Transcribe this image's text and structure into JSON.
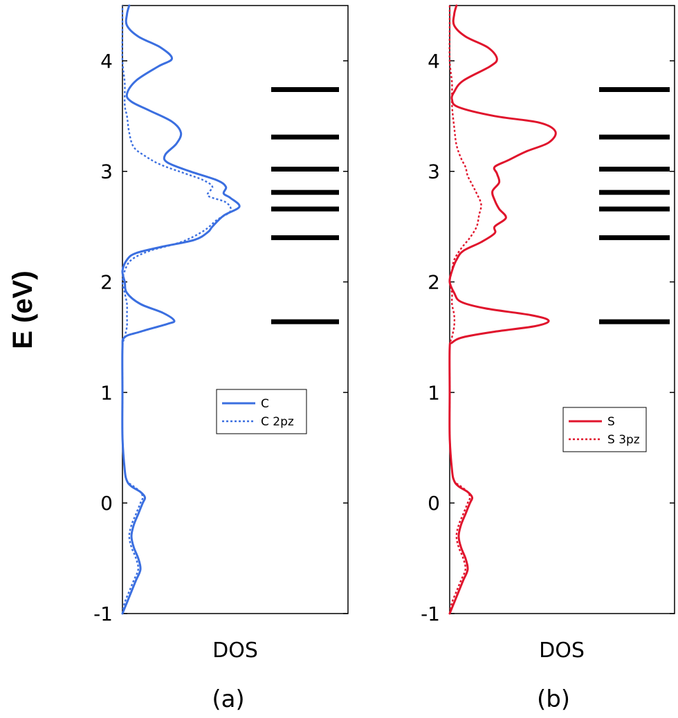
{
  "figure": {
    "ylabel": "E (eV)"
  },
  "chart_data": [
    {
      "type": "line",
      "panel_label": "(a)",
      "xlabel": "DOS",
      "ylim": [
        -1,
        4.5
      ],
      "yticks": [
        "-1",
        "0",
        "1",
        "2",
        "3",
        "4"
      ],
      "xticks": [],
      "color": "#3b6fe0",
      "legend": {
        "placement": "center-right",
        "entries": [
          "C",
          "C 2pz"
        ]
      },
      "series": [
        {
          "name": "C",
          "style": "solid",
          "points": [
            [
              0.0,
              -1.0
            ],
            [
              0.02,
              -0.9
            ],
            [
              0.04,
              -0.8
            ],
            [
              0.06,
              -0.7
            ],
            [
              0.08,
              -0.6
            ],
            [
              0.07,
              -0.5
            ],
            [
              0.05,
              -0.4
            ],
            [
              0.04,
              -0.3
            ],
            [
              0.05,
              -0.2
            ],
            [
              0.07,
              -0.1
            ],
            [
              0.09,
              0.0
            ],
            [
              0.1,
              0.05
            ],
            [
              0.08,
              0.1
            ],
            [
              0.04,
              0.15
            ],
            [
              0.02,
              0.2
            ],
            [
              0.01,
              0.3
            ],
            [
              0.0,
              0.6
            ],
            [
              0.0,
              1.0
            ],
            [
              0.0,
              1.4
            ],
            [
              0.01,
              1.5
            ],
            [
              0.08,
              1.55
            ],
            [
              0.2,
              1.62
            ],
            [
              0.23,
              1.65
            ],
            [
              0.18,
              1.72
            ],
            [
              0.08,
              1.8
            ],
            [
              0.02,
              1.9
            ],
            [
              0.01,
              2.0
            ],
            [
              0.0,
              2.1
            ],
            [
              0.02,
              2.2
            ],
            [
              0.06,
              2.26
            ],
            [
              0.18,
              2.32
            ],
            [
              0.32,
              2.38
            ],
            [
              0.38,
              2.45
            ],
            [
              0.4,
              2.5
            ],
            [
              0.45,
              2.6
            ],
            [
              0.52,
              2.68
            ],
            [
              0.48,
              2.76
            ],
            [
              0.45,
              2.8
            ],
            [
              0.46,
              2.86
            ],
            [
              0.42,
              2.92
            ],
            [
              0.3,
              3.0
            ],
            [
              0.2,
              3.08
            ],
            [
              0.19,
              3.15
            ],
            [
              0.24,
              3.25
            ],
            [
              0.26,
              3.35
            ],
            [
              0.22,
              3.45
            ],
            [
              0.12,
              3.55
            ],
            [
              0.04,
              3.63
            ],
            [
              0.02,
              3.7
            ],
            [
              0.06,
              3.82
            ],
            [
              0.16,
              3.95
            ],
            [
              0.22,
              4.02
            ],
            [
              0.17,
              4.12
            ],
            [
              0.07,
              4.22
            ],
            [
              0.02,
              4.32
            ],
            [
              0.02,
              4.42
            ],
            [
              0.03,
              4.5
            ]
          ]
        },
        {
          "name": "C 2pz",
          "style": "dotted",
          "points": [
            [
              0.0,
              -1.0
            ],
            [
              0.01,
              -0.9
            ],
            [
              0.03,
              -0.8
            ],
            [
              0.05,
              -0.7
            ],
            [
              0.07,
              -0.6
            ],
            [
              0.06,
              -0.5
            ],
            [
              0.04,
              -0.4
            ],
            [
              0.03,
              -0.3
            ],
            [
              0.04,
              -0.2
            ],
            [
              0.06,
              -0.1
            ],
            [
              0.08,
              0.0
            ],
            [
              0.09,
              0.05
            ],
            [
              0.08,
              0.1
            ],
            [
              0.05,
              0.15
            ],
            [
              0.02,
              0.2
            ],
            [
              0.01,
              0.3
            ],
            [
              0.0,
              0.6
            ],
            [
              0.0,
              1.0
            ],
            [
              0.0,
              1.4
            ],
            [
              0.01,
              1.5
            ],
            [
              0.02,
              1.6
            ],
            [
              0.02,
              1.7
            ],
            [
              0.02,
              1.8
            ],
            [
              0.01,
              1.9
            ],
            [
              0.0,
              2.0
            ],
            [
              0.01,
              2.1
            ],
            [
              0.04,
              2.2
            ],
            [
              0.12,
              2.28
            ],
            [
              0.26,
              2.36
            ],
            [
              0.36,
              2.46
            ],
            [
              0.42,
              2.56
            ],
            [
              0.48,
              2.64
            ],
            [
              0.46,
              2.72
            ],
            [
              0.38,
              2.78
            ],
            [
              0.4,
              2.86
            ],
            [
              0.36,
              2.92
            ],
            [
              0.28,
              2.98
            ],
            [
              0.17,
              3.06
            ],
            [
              0.1,
              3.14
            ],
            [
              0.05,
              3.22
            ],
            [
              0.03,
              3.35
            ],
            [
              0.02,
              3.5
            ],
            [
              0.01,
              3.6
            ],
            [
              0.01,
              3.8
            ],
            [
              0.0,
              4.0
            ],
            [
              0.0,
              4.3
            ],
            [
              0.0,
              4.5
            ]
          ]
        }
      ],
      "eigenvalues": [
        1.64,
        2.4,
        2.66,
        2.81,
        3.02,
        3.31,
        3.74
      ]
    },
    {
      "type": "line",
      "panel_label": "(b)",
      "xlabel": "DOS",
      "ylim": [
        -1,
        4.5
      ],
      "yticks": [
        "-1",
        "0",
        "1",
        "2",
        "3",
        "4"
      ],
      "xticks": [],
      "color": "#e0142c",
      "legend": {
        "placement": "center-right",
        "entries": [
          "S",
          "S 3pz"
        ]
      },
      "series": [
        {
          "name": "S",
          "style": "solid",
          "points": [
            [
              0.0,
              -1.0
            ],
            [
              0.02,
              -0.9
            ],
            [
              0.04,
              -0.8
            ],
            [
              0.06,
              -0.7
            ],
            [
              0.08,
              -0.6
            ],
            [
              0.07,
              -0.5
            ],
            [
              0.05,
              -0.4
            ],
            [
              0.04,
              -0.3
            ],
            [
              0.05,
              -0.2
            ],
            [
              0.07,
              -0.1
            ],
            [
              0.09,
              0.0
            ],
            [
              0.1,
              0.05
            ],
            [
              0.08,
              0.1
            ],
            [
              0.04,
              0.15
            ],
            [
              0.02,
              0.2
            ],
            [
              0.01,
              0.3
            ],
            [
              0.0,
              0.6
            ],
            [
              0.0,
              1.0
            ],
            [
              0.0,
              1.4
            ],
            [
              0.01,
              1.45
            ],
            [
              0.06,
              1.5
            ],
            [
              0.2,
              1.55
            ],
            [
              0.38,
              1.6
            ],
            [
              0.44,
              1.65
            ],
            [
              0.36,
              1.7
            ],
            [
              0.16,
              1.76
            ],
            [
              0.05,
              1.82
            ],
            [
              0.02,
              1.9
            ],
            [
              0.0,
              2.0
            ],
            [
              0.01,
              2.1
            ],
            [
              0.03,
              2.2
            ],
            [
              0.06,
              2.28
            ],
            [
              0.14,
              2.36
            ],
            [
              0.2,
              2.44
            ],
            [
              0.2,
              2.5
            ],
            [
              0.25,
              2.58
            ],
            [
              0.22,
              2.66
            ],
            [
              0.2,
              2.74
            ],
            [
              0.19,
              2.82
            ],
            [
              0.22,
              2.9
            ],
            [
              0.21,
              2.98
            ],
            [
              0.2,
              3.04
            ],
            [
              0.26,
              3.1
            ],
            [
              0.34,
              3.18
            ],
            [
              0.44,
              3.26
            ],
            [
              0.47,
              3.36
            ],
            [
              0.4,
              3.44
            ],
            [
              0.2,
              3.5
            ],
            [
              0.04,
              3.58
            ],
            [
              0.01,
              3.65
            ],
            [
              0.02,
              3.72
            ],
            [
              0.06,
              3.82
            ],
            [
              0.18,
              3.95
            ],
            [
              0.21,
              4.02
            ],
            [
              0.17,
              4.12
            ],
            [
              0.07,
              4.22
            ],
            [
              0.02,
              4.32
            ],
            [
              0.02,
              4.42
            ],
            [
              0.03,
              4.5
            ]
          ]
        },
        {
          "name": "S 3pz",
          "style": "dotted",
          "points": [
            [
              0.0,
              -1.0
            ],
            [
              0.01,
              -0.9
            ],
            [
              0.03,
              -0.8
            ],
            [
              0.05,
              -0.7
            ],
            [
              0.07,
              -0.6
            ],
            [
              0.06,
              -0.5
            ],
            [
              0.04,
              -0.4
            ],
            [
              0.03,
              -0.3
            ],
            [
              0.04,
              -0.2
            ],
            [
              0.06,
              -0.1
            ],
            [
              0.08,
              0.0
            ],
            [
              0.09,
              0.05
            ],
            [
              0.08,
              0.1
            ],
            [
              0.05,
              0.15
            ],
            [
              0.02,
              0.2
            ],
            [
              0.01,
              0.3
            ],
            [
              0.0,
              0.6
            ],
            [
              0.0,
              1.0
            ],
            [
              0.0,
              1.4
            ],
            [
              0.01,
              1.5
            ],
            [
              0.02,
              1.6
            ],
            [
              0.02,
              1.7
            ],
            [
              0.01,
              1.8
            ],
            [
              0.01,
              1.9
            ],
            [
              0.0,
              2.0
            ],
            [
              0.01,
              2.1
            ],
            [
              0.02,
              2.2
            ],
            [
              0.05,
              2.3
            ],
            [
              0.09,
              2.4
            ],
            [
              0.12,
              2.5
            ],
            [
              0.13,
              2.6
            ],
            [
              0.14,
              2.7
            ],
            [
              0.12,
              2.8
            ],
            [
              0.1,
              2.88
            ],
            [
              0.08,
              2.96
            ],
            [
              0.07,
              3.04
            ],
            [
              0.05,
              3.12
            ],
            [
              0.03,
              3.24
            ],
            [
              0.02,
              3.4
            ],
            [
              0.01,
              3.6
            ],
            [
              0.01,
              3.8
            ],
            [
              0.0,
              4.0
            ],
            [
              0.0,
              4.3
            ],
            [
              0.0,
              4.5
            ]
          ]
        }
      ],
      "eigenvalues": [
        1.64,
        2.4,
        2.66,
        2.81,
        3.02,
        3.31,
        3.74
      ]
    }
  ]
}
